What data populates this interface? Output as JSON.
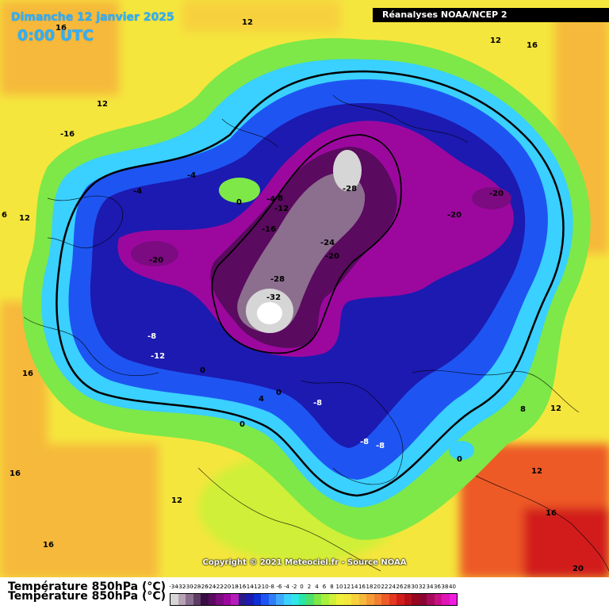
{
  "header": {
    "date": "Dimanche 12 janvier 2025",
    "time": "0:00 UTC",
    "source": "Réanalyses NOAA/NCEP 2"
  },
  "copyright": "Copyright © 2021 Meteociel.fr - Source NOAA",
  "legend": {
    "title": "Température 850hPa (°C)",
    "ticks": [
      "-34",
      "-32",
      "-30",
      "-28",
      "-26",
      "-24",
      "-22",
      "-20",
      "-18",
      "-16",
      "-14",
      "-12",
      "-10",
      "-8",
      "-6",
      "-4",
      "-2",
      "0",
      "2",
      "4",
      "6",
      "8",
      "10",
      "12",
      "14",
      "16",
      "18",
      "20",
      "22",
      "24",
      "26",
      "28",
      "30",
      "32",
      "34",
      "36",
      "38",
      "40"
    ],
    "colors": [
      "#d6d6d6",
      "#b7a3b4",
      "#8c6f8e",
      "#5e3d64",
      "#3a0d44",
      "#5a0a5f",
      "#7c0a80",
      "#9c089e",
      "#b81bbb",
      "#2a1b8a",
      "#1c1ab0",
      "#0d2fd6",
      "#1e55f2",
      "#2f7df7",
      "#3ea8ff",
      "#3ad0ff",
      "#31e6e6",
      "#28e8a8",
      "#4de06e",
      "#7de848",
      "#a8f03c",
      "#cfef38",
      "#eef03a",
      "#f5e63d",
      "#f7d13c",
      "#f6b93a",
      "#f59c36",
      "#f27f30",
      "#ee5a28",
      "#e5381f",
      "#d21c1c",
      "#b5101a",
      "#96061f",
      "#8a0631",
      "#a80a5b",
      "#c80f86",
      "#e014b6",
      "#f01ce0"
    ]
  },
  "map_labels": [
    "12",
    "16",
    "12",
    "-16",
    "12",
    "16",
    "-4",
    "-4",
    "0",
    "-4",
    "-8",
    "-12",
    "-16",
    "-28",
    "-20",
    "-20",
    "-20",
    "-24",
    "-20",
    "-28",
    "-32",
    "-8",
    "-12",
    "0",
    "4",
    "0",
    "-8",
    "-8",
    "-8",
    "0",
    "8",
    "12",
    "12",
    "16",
    "16",
    "0",
    "16",
    "12",
    "16",
    "20",
    "6",
    "12"
  ],
  "icons": [
    "map-background"
  ]
}
